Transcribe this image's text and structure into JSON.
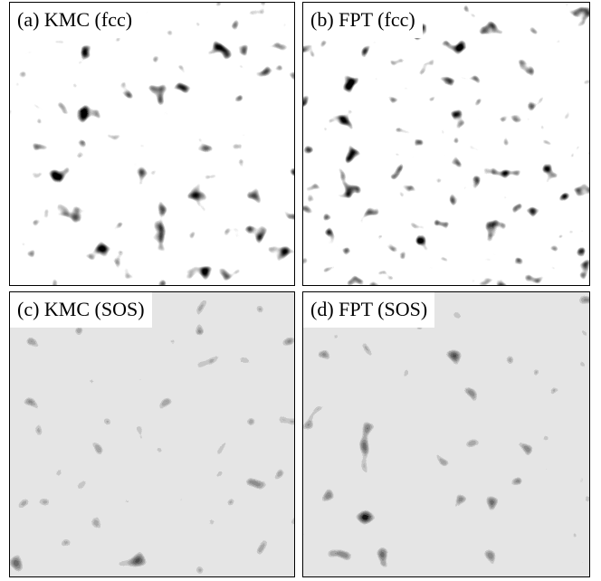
{
  "panels": [
    {
      "label": "(a) KMC (fcc)"
    },
    {
      "label": "(b) FPT (fcc)"
    },
    {
      "label": "(c) KMC (SOS)"
    },
    {
      "label": "(d) FPT (SOS)"
    }
  ]
}
